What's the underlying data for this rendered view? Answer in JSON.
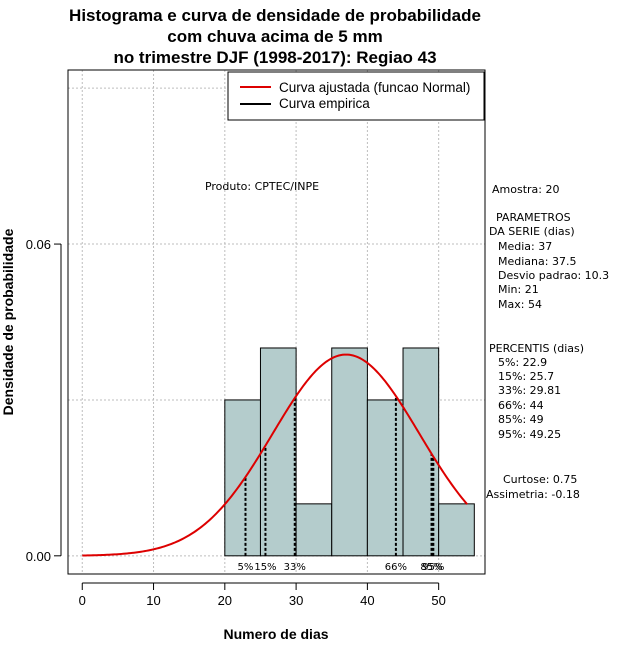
{
  "chart_data": {
    "type": "bar",
    "title_lines": [
      "Histograma e curva de densidade de probabilidade",
      "com chuva acima de 5 mm",
      "no trimestre DJF (1998-2017): Regiao 43"
    ],
    "xlabel": "Numero de dias",
    "ylabel": "Densidade de probabilidade",
    "xlim": [
      -2,
      56.5
    ],
    "ylim": [
      -0.0035,
      0.0935
    ],
    "x_ticks": [
      0,
      10,
      20,
      30,
      40,
      50
    ],
    "y_ticks": [
      0.0,
      0.06
    ],
    "y_tick_labels": [
      "0.00",
      "0.06"
    ],
    "grid_y": [
      0.0,
      0.03,
      0.06,
      0.09
    ],
    "grid_x": [
      0,
      10,
      20,
      30,
      40,
      50
    ],
    "bins": [
      {
        "x0": 20,
        "x1": 25,
        "density": 0.03
      },
      {
        "x0": 25,
        "x1": 30,
        "density": 0.04
      },
      {
        "x0": 30,
        "x1": 35,
        "density": 0.01
      },
      {
        "x0": 35,
        "x1": 40,
        "density": 0.04
      },
      {
        "x0": 40,
        "x1": 45,
        "density": 0.03
      },
      {
        "x0": 45,
        "x1": 50,
        "density": 0.04
      },
      {
        "x0": 50,
        "x1": 55,
        "density": 0.01
      }
    ],
    "bar_color": "#b4cccc",
    "fitted_curve": {
      "name": "Curva ajustada (funcao Normal)",
      "mean": 37,
      "sd": 10.3,
      "x_from": 0,
      "x_to": 54,
      "color": "#dd0000"
    },
    "empirical_curve": {
      "name": "Curva empirica",
      "color": "#000000"
    },
    "legend_position": "top-right",
    "percentile_markers": [
      {
        "label": "5%",
        "value": 22.9
      },
      {
        "label": "15%",
        "value": 25.7
      },
      {
        "label": "33%",
        "value": 29.81
      },
      {
        "label": "66%",
        "value": 44
      },
      {
        "label": "85%",
        "value": 49
      },
      {
        "label": "95%",
        "value": 49.25
      }
    ],
    "annotation": "Produto: CPTEC/INPE"
  },
  "stats_panel": {
    "amostra": "Amostra: 20",
    "parametros_header_1": "PARAMETROS",
    "parametros_header_2": "DA SERIE (dias)",
    "media": "Media: 37",
    "mediana": "Mediana: 37.5",
    "desvio": "Desvio padrao: 10.3",
    "min": "Min: 21",
    "max": "Max: 54",
    "percentis_header": "PERCENTIS (dias)",
    "p5": "5%: 22.9",
    "p15": "15%: 25.7",
    "p33": "33%: 29.81",
    "p66": "66%: 44",
    "p85": "85%: 49",
    "p95": "95%: 49.25",
    "curtose": "Curtose: 0.75",
    "assimetria": "Assimetria: -0.18"
  }
}
